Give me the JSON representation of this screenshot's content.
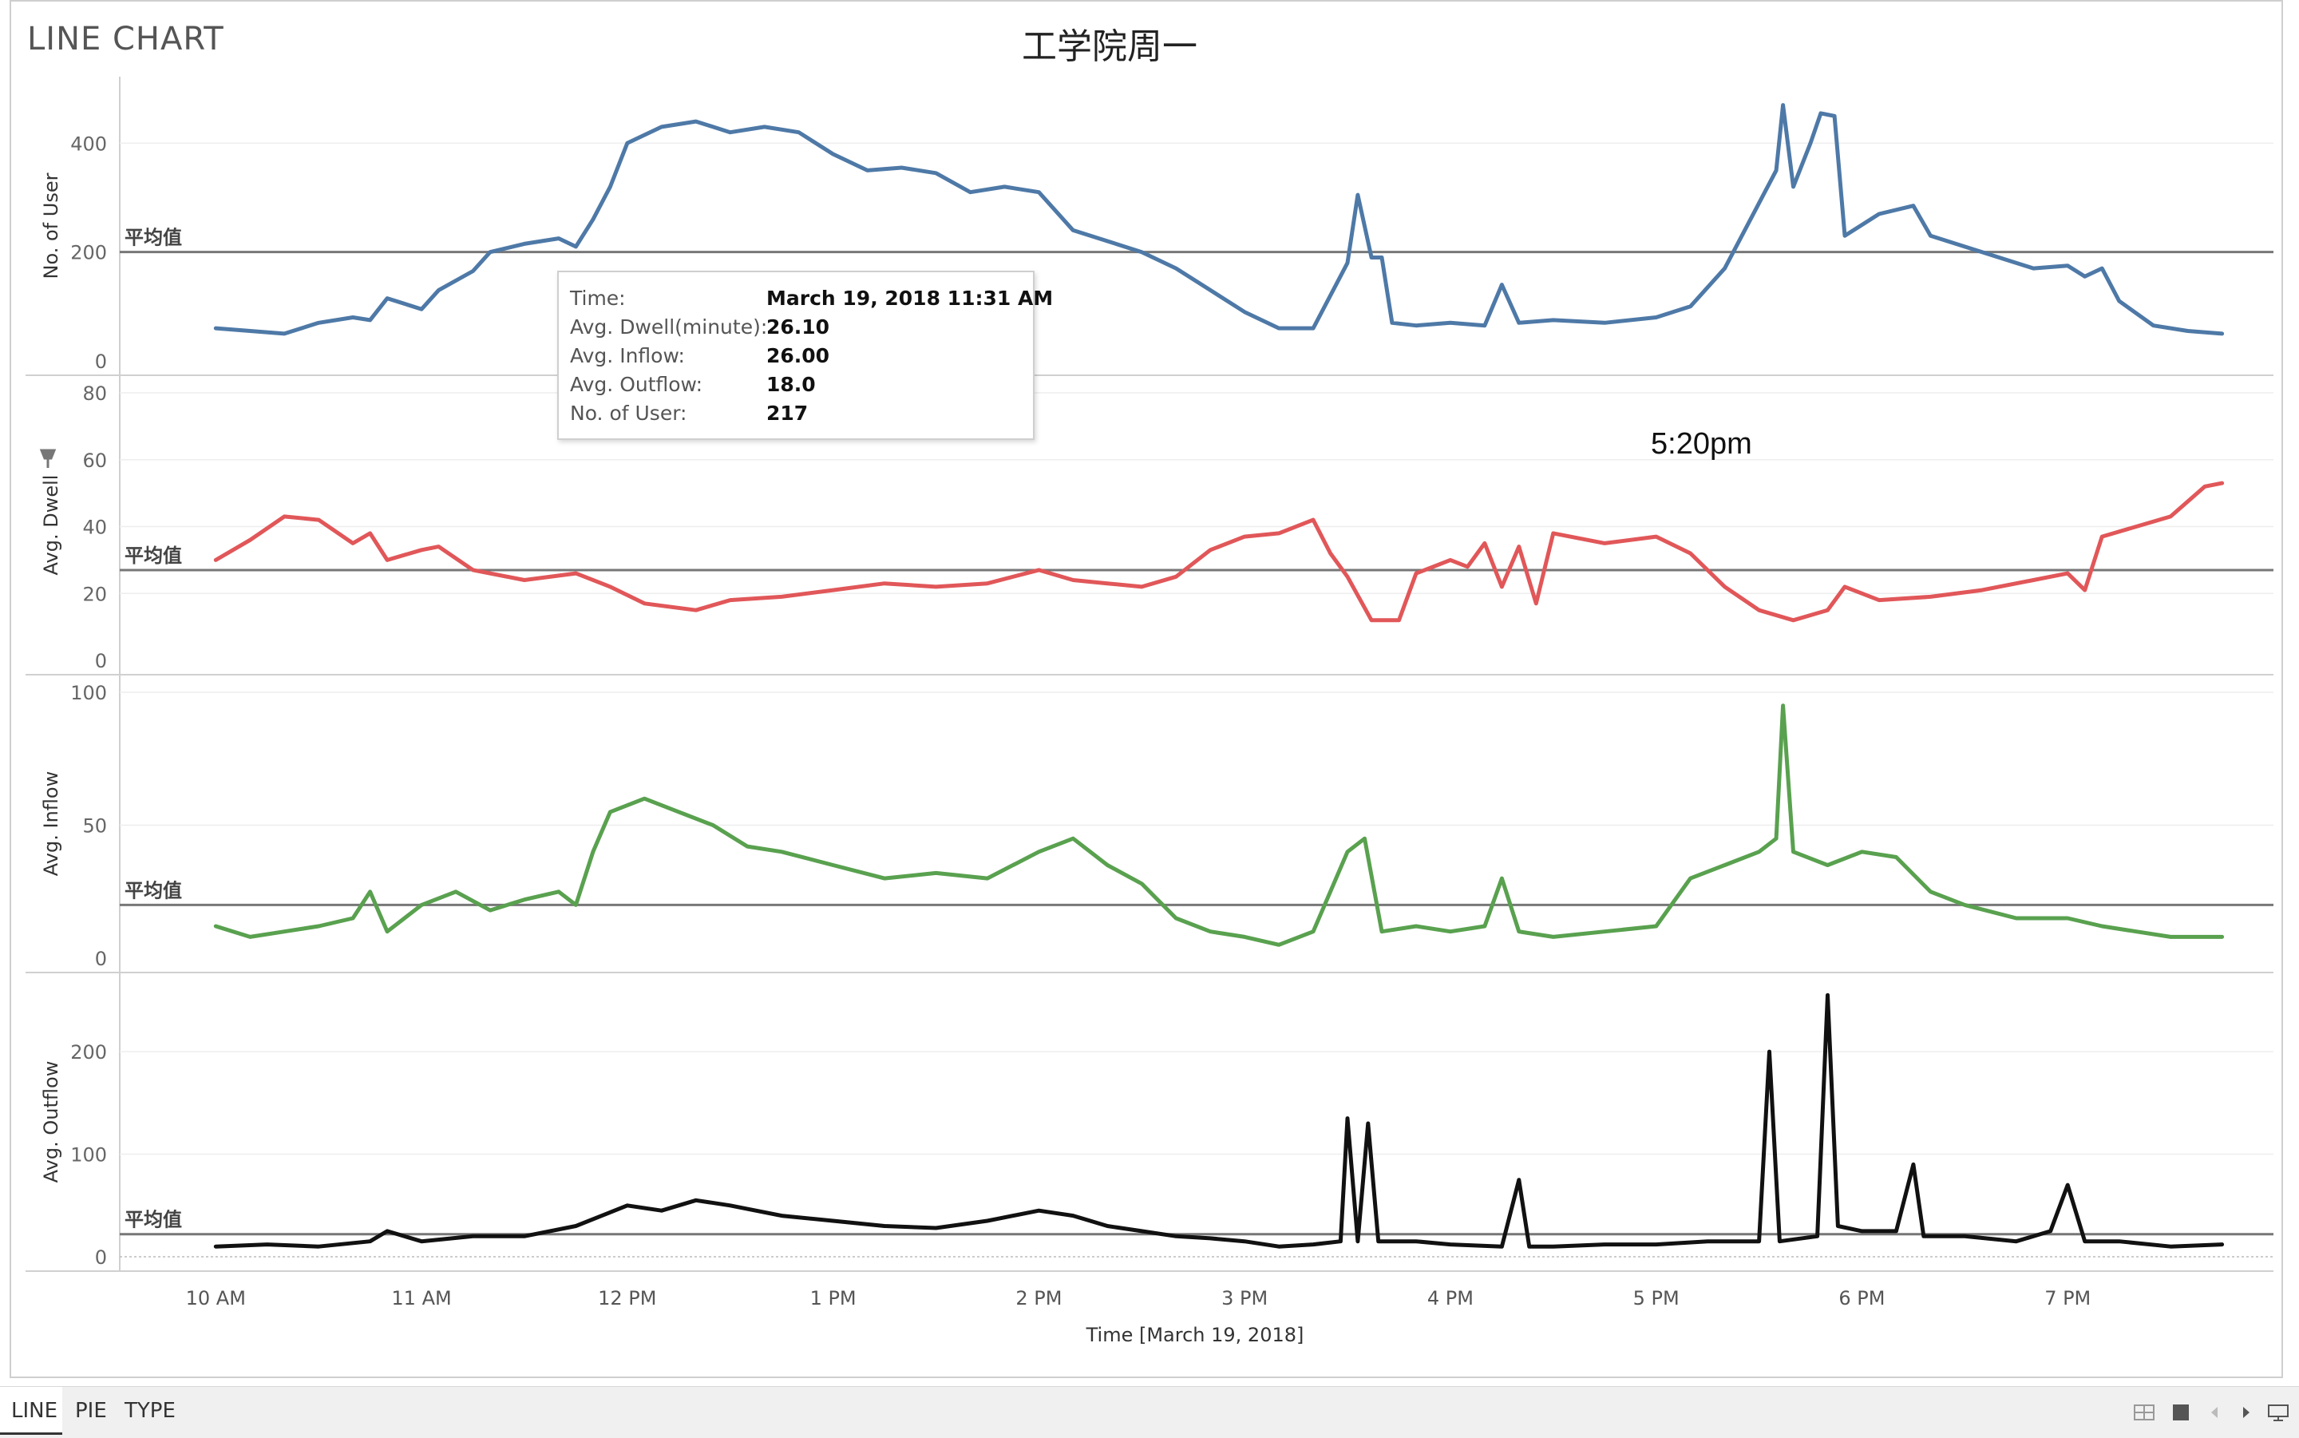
{
  "app_title": "LINE CHART",
  "chart_title": "工学院周一",
  "tabs": [
    {
      "label": "LINE",
      "active": true
    },
    {
      "label": "PIE",
      "active": false
    },
    {
      "label": "TYPE",
      "active": false
    }
  ],
  "annotation": "5:20pm",
  "tooltip": {
    "rows": [
      {
        "label": "Time:",
        "value": "March 19, 2018 11:31 AM"
      },
      {
        "label": "Avg. Dwell(minute):",
        "value": "26.10"
      },
      {
        "label": "Avg. Inflow:",
        "value": "26.00"
      },
      {
        "label": "Avg. Outflow:",
        "value": "18.0"
      },
      {
        "label": "No. of User:",
        "value": "217"
      }
    ]
  },
  "toolbar_icons": [
    "grid-view-icon",
    "fullscreen-icon",
    "back-icon",
    "forward-icon",
    "presentation-icon"
  ],
  "chart_data": {
    "type": "line",
    "x_axis": {
      "label": "Time [March 19, 2018]",
      "ticks": [
        "10 AM",
        "11 AM",
        "12 PM",
        "1 PM",
        "2 PM",
        "3 PM",
        "4 PM",
        "5 PM",
        "6 PM",
        "7 PM"
      ],
      "range": [
        "09:32",
        "20:00"
      ]
    },
    "reference_line_label": "平均值",
    "panels": [
      {
        "series": "No. of User",
        "ylabel": "No. of User",
        "color": "#4e79a7",
        "ylim": [
          0,
          490
        ],
        "yticks": [
          0,
          200,
          400
        ],
        "average": 200,
        "points": [
          [
            "10:00",
            60
          ],
          [
            "10:10",
            55
          ],
          [
            "10:20",
            50
          ],
          [
            "10:30",
            70
          ],
          [
            "10:40",
            80
          ],
          [
            "10:45",
            75
          ],
          [
            "10:50",
            115
          ],
          [
            "11:00",
            95
          ],
          [
            "11:05",
            130
          ],
          [
            "11:15",
            165
          ],
          [
            "11:20",
            200
          ],
          [
            "11:30",
            215
          ],
          [
            "11:40",
            225
          ],
          [
            "11:45",
            210
          ],
          [
            "11:50",
            260
          ],
          [
            "11:55",
            320
          ],
          [
            "12:00",
            400
          ],
          [
            "12:10",
            430
          ],
          [
            "12:20",
            440
          ],
          [
            "12:30",
            420
          ],
          [
            "12:40",
            430
          ],
          [
            "12:50",
            420
          ],
          [
            "13:00",
            380
          ],
          [
            "13:10",
            350
          ],
          [
            "13:20",
            355
          ],
          [
            "13:30",
            345
          ],
          [
            "13:40",
            310
          ],
          [
            "13:50",
            320
          ],
          [
            "14:00",
            310
          ],
          [
            "14:10",
            240
          ],
          [
            "14:20",
            220
          ],
          [
            "14:30",
            200
          ],
          [
            "14:40",
            170
          ],
          [
            "14:50",
            130
          ],
          [
            "15:00",
            90
          ],
          [
            "15:10",
            60
          ],
          [
            "15:20",
            60
          ],
          [
            "15:30",
            180
          ],
          [
            "15:33",
            305
          ],
          [
            "15:37",
            190
          ],
          [
            "15:40",
            190
          ],
          [
            "15:43",
            70
          ],
          [
            "15:50",
            65
          ],
          [
            "16:00",
            70
          ],
          [
            "16:10",
            65
          ],
          [
            "16:15",
            140
          ],
          [
            "16:20",
            70
          ],
          [
            "16:30",
            75
          ],
          [
            "16:45",
            70
          ],
          [
            "17:00",
            80
          ],
          [
            "17:10",
            100
          ],
          [
            "17:20",
            170
          ],
          [
            "17:30",
            290
          ],
          [
            "17:35",
            350
          ],
          [
            "17:37",
            470
          ],
          [
            "17:40",
            320
          ],
          [
            "17:45",
            400
          ],
          [
            "17:48",
            455
          ],
          [
            "17:52",
            450
          ],
          [
            "17:55",
            230
          ],
          [
            "18:00",
            250
          ],
          [
            "18:05",
            270
          ],
          [
            "18:15",
            285
          ],
          [
            "18:20",
            230
          ],
          [
            "18:30",
            210
          ],
          [
            "18:40",
            190
          ],
          [
            "18:50",
            170
          ],
          [
            "19:00",
            175
          ],
          [
            "19:05",
            155
          ],
          [
            "19:10",
            170
          ],
          [
            "19:15",
            110
          ],
          [
            "19:25",
            65
          ],
          [
            "19:35",
            55
          ],
          [
            "19:45",
            50
          ]
        ]
      },
      {
        "series": "Avg. Dwell",
        "ylabel": "Avg. Dwell",
        "color": "#e15759",
        "ylim": [
          0,
          80
        ],
        "yticks": [
          0,
          20,
          40,
          60,
          80
        ],
        "average": 27,
        "points": [
          [
            "10:00",
            30
          ],
          [
            "10:10",
            36
          ],
          [
            "10:20",
            43
          ],
          [
            "10:30",
            42
          ],
          [
            "10:40",
            35
          ],
          [
            "10:45",
            38
          ],
          [
            "10:50",
            30
          ],
          [
            "11:00",
            33
          ],
          [
            "11:05",
            34
          ],
          [
            "11:15",
            27
          ],
          [
            "11:30",
            24
          ],
          [
            "11:45",
            26
          ],
          [
            "11:55",
            22
          ],
          [
            "12:05",
            17
          ],
          [
            "12:20",
            15
          ],
          [
            "12:30",
            18
          ],
          [
            "12:45",
            19
          ],
          [
            "13:00",
            21
          ],
          [
            "13:15",
            23
          ],
          [
            "13:30",
            22
          ],
          [
            "13:45",
            23
          ],
          [
            "14:00",
            27
          ],
          [
            "14:10",
            24
          ],
          [
            "14:20",
            23
          ],
          [
            "14:30",
            22
          ],
          [
            "14:40",
            25
          ],
          [
            "14:50",
            33
          ],
          [
            "15:00",
            37
          ],
          [
            "15:10",
            38
          ],
          [
            "15:20",
            42
          ],
          [
            "15:25",
            32
          ],
          [
            "15:30",
            25
          ],
          [
            "15:37",
            12
          ],
          [
            "15:45",
            12
          ],
          [
            "15:50",
            26
          ],
          [
            "16:00",
            30
          ],
          [
            "16:05",
            28
          ],
          [
            "16:10",
            35
          ],
          [
            "16:15",
            22
          ],
          [
            "16:20",
            34
          ],
          [
            "16:25",
            17
          ],
          [
            "16:30",
            38
          ],
          [
            "16:45",
            35
          ],
          [
            "17:00",
            37
          ],
          [
            "17:10",
            32
          ],
          [
            "17:20",
            22
          ],
          [
            "17:30",
            15
          ],
          [
            "17:40",
            12
          ],
          [
            "17:50",
            15
          ],
          [
            "17:55",
            22
          ],
          [
            "18:05",
            18
          ],
          [
            "18:20",
            19
          ],
          [
            "18:35",
            21
          ],
          [
            "18:50",
            24
          ],
          [
            "19:00",
            26
          ],
          [
            "19:05",
            21
          ],
          [
            "19:10",
            37
          ],
          [
            "19:20",
            40
          ],
          [
            "19:30",
            43
          ],
          [
            "19:40",
            52
          ],
          [
            "19:45",
            53
          ]
        ]
      },
      {
        "series": "Avg. Inflow",
        "ylabel": "Avg. Inflow",
        "color": "#59a14f",
        "ylim": [
          0,
          100
        ],
        "yticks": [
          0,
          50,
          100
        ],
        "average": 20,
        "points": [
          [
            "10:00",
            12
          ],
          [
            "10:10",
            8
          ],
          [
            "10:20",
            10
          ],
          [
            "10:30",
            12
          ],
          [
            "10:40",
            15
          ],
          [
            "10:45",
            25
          ],
          [
            "10:50",
            10
          ],
          [
            "11:00",
            20
          ],
          [
            "11:10",
            25
          ],
          [
            "11:20",
            18
          ],
          [
            "11:30",
            22
          ],
          [
            "11:40",
            25
          ],
          [
            "11:45",
            20
          ],
          [
            "11:50",
            40
          ],
          [
            "11:55",
            55
          ],
          [
            "12:05",
            60
          ],
          [
            "12:15",
            55
          ],
          [
            "12:25",
            50
          ],
          [
            "12:35",
            42
          ],
          [
            "12:45",
            40
          ],
          [
            "13:00",
            35
          ],
          [
            "13:15",
            30
          ],
          [
            "13:30",
            32
          ],
          [
            "13:45",
            30
          ],
          [
            "14:00",
            40
          ],
          [
            "14:10",
            45
          ],
          [
            "14:20",
            35
          ],
          [
            "14:30",
            28
          ],
          [
            "14:40",
            15
          ],
          [
            "14:50",
            10
          ],
          [
            "15:00",
            8
          ],
          [
            "15:10",
            5
          ],
          [
            "15:20",
            10
          ],
          [
            "15:30",
            40
          ],
          [
            "15:35",
            45
          ],
          [
            "15:40",
            10
          ],
          [
            "15:50",
            12
          ],
          [
            "16:00",
            10
          ],
          [
            "16:10",
            12
          ],
          [
            "16:15",
            30
          ],
          [
            "16:20",
            10
          ],
          [
            "16:30",
            8
          ],
          [
            "16:45",
            10
          ],
          [
            "17:00",
            12
          ],
          [
            "17:10",
            30
          ],
          [
            "17:20",
            35
          ],
          [
            "17:30",
            40
          ],
          [
            "17:35",
            45
          ],
          [
            "17:37",
            95
          ],
          [
            "17:40",
            40
          ],
          [
            "17:50",
            35
          ],
          [
            "18:00",
            40
          ],
          [
            "18:10",
            38
          ],
          [
            "18:20",
            25
          ],
          [
            "18:30",
            20
          ],
          [
            "18:45",
            15
          ],
          [
            "19:00",
            15
          ],
          [
            "19:10",
            12
          ],
          [
            "19:20",
            10
          ],
          [
            "19:30",
            8
          ],
          [
            "19:45",
            8
          ]
        ]
      },
      {
        "series": "Avg. Outflow",
        "ylabel": "Avg. Outflow",
        "color": "#111111",
        "ylim": [
          0,
          260
        ],
        "yticks": [
          0,
          100,
          200
        ],
        "average": 22,
        "points": [
          [
            "10:00",
            10
          ],
          [
            "10:15",
            12
          ],
          [
            "10:30",
            10
          ],
          [
            "10:45",
            15
          ],
          [
            "10:50",
            25
          ],
          [
            "11:00",
            15
          ],
          [
            "11:15",
            20
          ],
          [
            "11:30",
            20
          ],
          [
            "11:45",
            30
          ],
          [
            "12:00",
            50
          ],
          [
            "12:10",
            45
          ],
          [
            "12:20",
            55
          ],
          [
            "12:30",
            50
          ],
          [
            "12:45",
            40
          ],
          [
            "13:00",
            35
          ],
          [
            "13:15",
            30
          ],
          [
            "13:30",
            28
          ],
          [
            "13:45",
            35
          ],
          [
            "14:00",
            45
          ],
          [
            "14:10",
            40
          ],
          [
            "14:20",
            30
          ],
          [
            "14:30",
            25
          ],
          [
            "14:40",
            20
          ],
          [
            "14:50",
            18
          ],
          [
            "15:00",
            15
          ],
          [
            "15:10",
            10
          ],
          [
            "15:20",
            12
          ],
          [
            "15:28",
            15
          ],
          [
            "15:30",
            135
          ],
          [
            "15:33",
            15
          ],
          [
            "15:36",
            130
          ],
          [
            "15:39",
            15
          ],
          [
            "15:50",
            15
          ],
          [
            "16:00",
            12
          ],
          [
            "16:15",
            10
          ],
          [
            "16:20",
            75
          ],
          [
            "16:23",
            10
          ],
          [
            "16:30",
            10
          ],
          [
            "16:45",
            12
          ],
          [
            "17:00",
            12
          ],
          [
            "17:15",
            15
          ],
          [
            "17:30",
            15
          ],
          [
            "17:33",
            200
          ],
          [
            "17:36",
            15
          ],
          [
            "17:47",
            20
          ],
          [
            "17:50",
            255
          ],
          [
            "17:53",
            30
          ],
          [
            "18:00",
            25
          ],
          [
            "18:10",
            25
          ],
          [
            "18:15",
            90
          ],
          [
            "18:18",
            20
          ],
          [
            "18:30",
            20
          ],
          [
            "18:45",
            15
          ],
          [
            "18:55",
            25
          ],
          [
            "19:00",
            70
          ],
          [
            "19:05",
            15
          ],
          [
            "19:15",
            15
          ],
          [
            "19:30",
            10
          ],
          [
            "19:45",
            12
          ]
        ]
      }
    ]
  }
}
